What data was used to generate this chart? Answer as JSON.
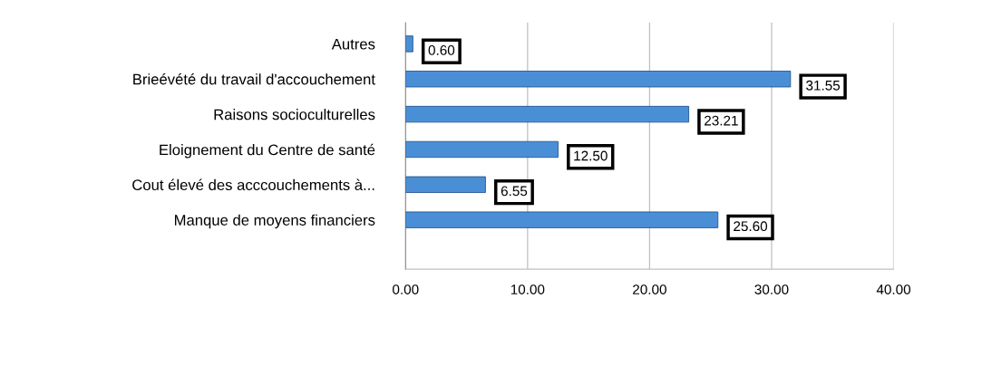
{
  "chart_data": {
    "type": "bar",
    "orientation": "horizontal",
    "categories": [
      "Autres",
      "Brieévété du travail d'accouchement",
      "Raisons socioculturelles",
      "Eloignement du Centre de santé",
      "Cout élevé des acccouchements à...",
      "Manque de moyens financiers"
    ],
    "values": [
      0.6,
      31.55,
      23.21,
      12.5,
      6.55,
      25.6
    ],
    "value_labels": [
      "0.60",
      "31.55",
      "23.21",
      "12.50",
      "6.55",
      "25.60"
    ],
    "color": "#4a8fd6",
    "xlim": [
      0,
      40
    ],
    "xticks": [
      {
        "value": 0,
        "label": "0.00"
      },
      {
        "value": 10,
        "label": "10.00"
      },
      {
        "value": 20,
        "label": "20.00"
      },
      {
        "value": 30,
        "label": "30.00"
      },
      {
        "value": 40,
        "label": "40.00"
      }
    ],
    "grid": "x",
    "legend": false
  }
}
